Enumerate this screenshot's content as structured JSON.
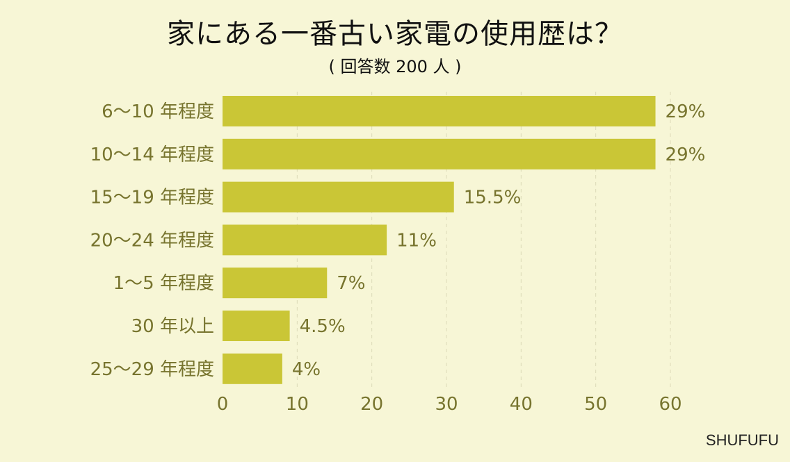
{
  "chart_data": {
    "type": "bar",
    "orientation": "horizontal",
    "title": "家にある一番古い家電の使用歴は？",
    "subtitle": "( 回答数 200 人 )",
    "categories": [
      "6〜10 年程度",
      "10〜14 年程度",
      "15〜19 年程度",
      "20〜24 年程度",
      "1〜5 年程度",
      "30 年以上",
      "25〜29 年程度"
    ],
    "values": [
      58,
      58,
      31,
      22,
      14,
      9,
      8
    ],
    "value_labels": [
      "29%",
      "29%",
      "15.5%",
      "11%",
      "7%",
      "4.5%",
      "4%"
    ],
    "xlim": [
      0,
      60
    ],
    "xticks": [
      0,
      10,
      20,
      30,
      40,
      50,
      60
    ],
    "grid": "vertical dashed",
    "bar_color": "#cac636",
    "text_color": "#77742e"
  },
  "credit": "SHUFUFU"
}
